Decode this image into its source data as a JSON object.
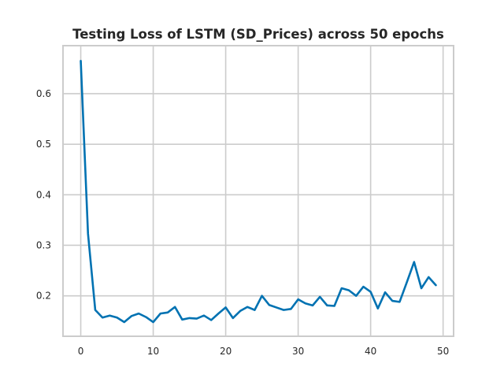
{
  "chart_data": {
    "type": "line",
    "title": "Testing Loss of LSTM (SD_Prices) across 50 epochs",
    "xlabel": "",
    "ylabel": "",
    "xlim": [
      -2.45,
      51.45
    ],
    "ylim": [
      0.12,
      0.695
    ],
    "x_ticks": [
      0,
      10,
      20,
      30,
      40,
      50
    ],
    "y_ticks": [
      0.2,
      0.3,
      0.4,
      0.5,
      0.6
    ],
    "x_tick_labels": [
      "0",
      "10",
      "20",
      "30",
      "40",
      "50"
    ],
    "y_tick_labels": [
      "0.2",
      "0.3",
      "0.4",
      "0.5",
      "0.6"
    ],
    "grid": true,
    "legend": "none",
    "series": [
      {
        "color": "#0072b2",
        "x": [
          0,
          1,
          2,
          3,
          4,
          5,
          6,
          7,
          8,
          9,
          10,
          11,
          12,
          13,
          14,
          15,
          16,
          17,
          18,
          19,
          20,
          21,
          22,
          23,
          24,
          25,
          26,
          27,
          28,
          29,
          30,
          31,
          32,
          33,
          34,
          35,
          36,
          37,
          38,
          39,
          40,
          41,
          42,
          43,
          44,
          45,
          46,
          47,
          48,
          49
        ],
        "values": [
          0.665,
          0.323,
          0.172,
          0.157,
          0.161,
          0.157,
          0.148,
          0.16,
          0.165,
          0.158,
          0.148,
          0.165,
          0.167,
          0.178,
          0.153,
          0.156,
          0.155,
          0.161,
          0.152,
          0.165,
          0.177,
          0.156,
          0.17,
          0.178,
          0.172,
          0.2,
          0.182,
          0.177,
          0.172,
          0.174,
          0.193,
          0.185,
          0.181,
          0.198,
          0.181,
          0.18,
          0.215,
          0.211,
          0.2,
          0.218,
          0.208,
          0.175,
          0.207,
          0.19,
          0.188,
          0.227,
          0.267,
          0.215,
          0.237,
          0.221
        ]
      }
    ]
  }
}
